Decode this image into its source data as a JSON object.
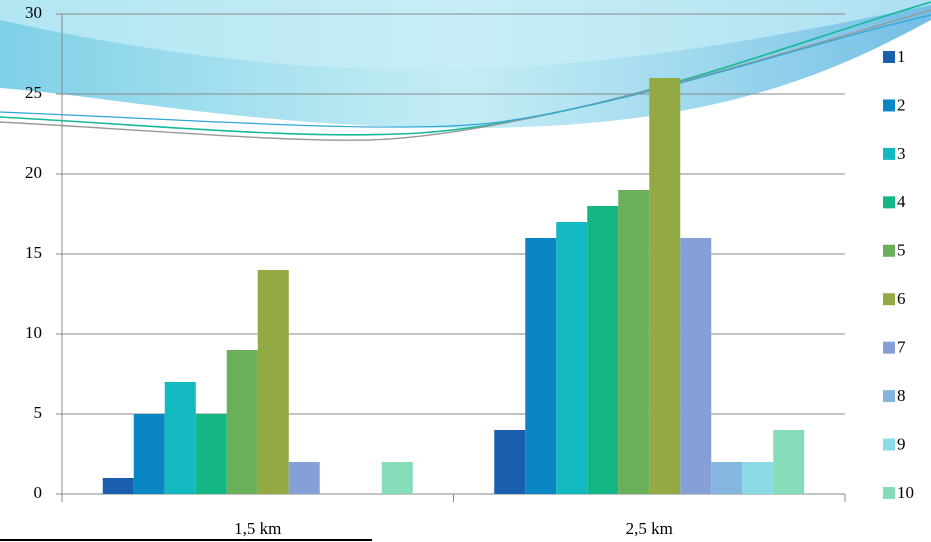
{
  "chart_data": {
    "type": "bar",
    "categories": [
      "1,5 km",
      "2,5 km"
    ],
    "series": [
      {
        "name": "1",
        "color": "#1a5fae",
        "values": [
          1,
          4
        ]
      },
      {
        "name": "2",
        "color": "#0a86c3",
        "values": [
          5,
          16
        ]
      },
      {
        "name": "3",
        "color": "#12b9c1",
        "values": [
          7,
          17
        ]
      },
      {
        "name": "4",
        "color": "#14b684",
        "values": [
          5,
          18
        ]
      },
      {
        "name": "5",
        "color": "#6aaf59",
        "values": [
          9,
          19
        ]
      },
      {
        "name": "6",
        "color": "#93aa44",
        "values": [
          14,
          26
        ]
      },
      {
        "name": "7",
        "color": "#869fd6",
        "values": [
          2,
          16
        ]
      },
      {
        "name": "8",
        "color": "#84b6e0",
        "values": [
          0,
          2
        ]
      },
      {
        "name": "9",
        "color": "#8bdbe6",
        "values": [
          0,
          2
        ]
      },
      {
        "name": "10",
        "color": "#86dbb9",
        "values": [
          2,
          4
        ]
      }
    ],
    "ylim": [
      0,
      30
    ],
    "yticks": [
      0,
      5,
      10,
      15,
      20,
      25,
      30
    ],
    "grid": true,
    "legend": "right"
  }
}
